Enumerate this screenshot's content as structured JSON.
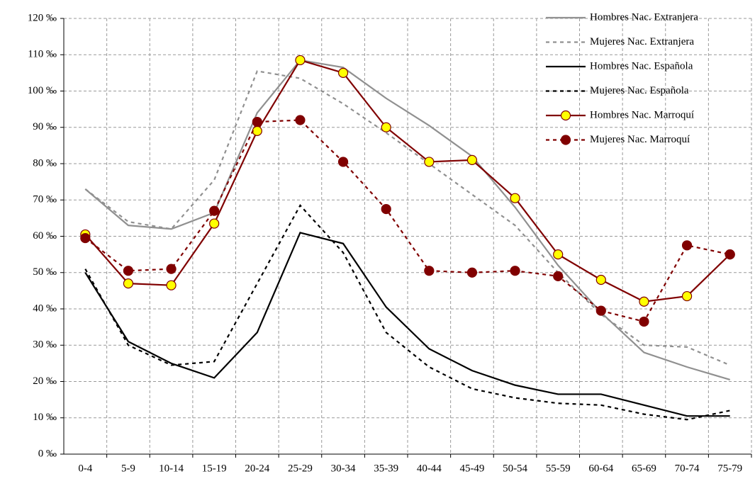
{
  "chart_data": {
    "type": "line",
    "categories": [
      "0-4",
      "5-9",
      "10-14",
      "15-19",
      "20-24",
      "25-29",
      "30-34",
      "35-39",
      "40-44",
      "45-49",
      "50-54",
      "55-59",
      "60-64",
      "65-69",
      "70-74",
      "75-79"
    ],
    "ylim": [
      0,
      120
    ],
    "yticks": [
      {
        "value": 0,
        "label": "0 ‰"
      },
      {
        "value": 10,
        "label": "10 ‰"
      },
      {
        "value": 20,
        "label": "20 ‰"
      },
      {
        "value": 30,
        "label": "30 ‰"
      },
      {
        "value": 40,
        "label": "40 ‰"
      },
      {
        "value": 50,
        "label": "50 ‰"
      },
      {
        "value": 60,
        "label": "60 ‰"
      },
      {
        "value": 70,
        "label": "70 ‰"
      },
      {
        "value": 80,
        "label": "80 ‰"
      },
      {
        "value": 90,
        "label": "90 ‰"
      },
      {
        "value": 100,
        "label": "100 ‰"
      },
      {
        "value": 110,
        "label": "110 ‰"
      },
      {
        "value": 120,
        "label": "120 ‰"
      }
    ],
    "grid": true,
    "legend": "top-right",
    "series": [
      {
        "name": "Hombres Nac. Extranjera",
        "color": "#909090",
        "line_style": "solid",
        "marker": "none",
        "values": [
          73,
          63,
          62,
          66.5,
          94,
          108.5,
          106.5,
          98,
          90.5,
          82,
          68,
          52,
          39,
          28,
          24,
          20.5
        ]
      },
      {
        "name": "Mujeres Nac. Extranjera",
        "color": "#909090",
        "line_style": "dashed",
        "marker": "none",
        "values": [
          73,
          64,
          62,
          75.5,
          105.5,
          103.5,
          96.5,
          88.5,
          80,
          71.5,
          63,
          50,
          38.5,
          30,
          29.5,
          24.5
        ]
      },
      {
        "name": "Hombres Nac. Española",
        "color": "#000000",
        "line_style": "solid",
        "marker": "none",
        "values": [
          50,
          31,
          25,
          21,
          33.5,
          61,
          58,
          40.5,
          29,
          23,
          19,
          16.5,
          16.5,
          13.5,
          10.5,
          10.5
        ]
      },
      {
        "name": "Mujeres Nac. Española",
        "color": "#000000",
        "line_style": "dashed",
        "marker": "none",
        "values": [
          51,
          30,
          24.5,
          25.5,
          47,
          68.5,
          55.5,
          33.5,
          24,
          18,
          15.5,
          14,
          13.5,
          11,
          9.5,
          12
        ]
      },
      {
        "name": "Hombres Nac. Marroquí",
        "color": "#800000",
        "line_style": "solid",
        "marker": "circle",
        "marker_fill": "#ffff00",
        "values": [
          60.5,
          47,
          46.5,
          63.5,
          89,
          108.5,
          105,
          90,
          80.5,
          81,
          70.5,
          55,
          48,
          42,
          43.5,
          55
        ]
      },
      {
        "name": "Mujeres Nac. Marroquí",
        "color": "#800000",
        "line_style": "dashed",
        "marker": "circle",
        "marker_fill": "#800000",
        "values": [
          59.5,
          50.5,
          51,
          67,
          91.5,
          92,
          80.5,
          67.5,
          50.5,
          50,
          50.5,
          49,
          39.5,
          36.5,
          57.5,
          55
        ]
      }
    ]
  }
}
